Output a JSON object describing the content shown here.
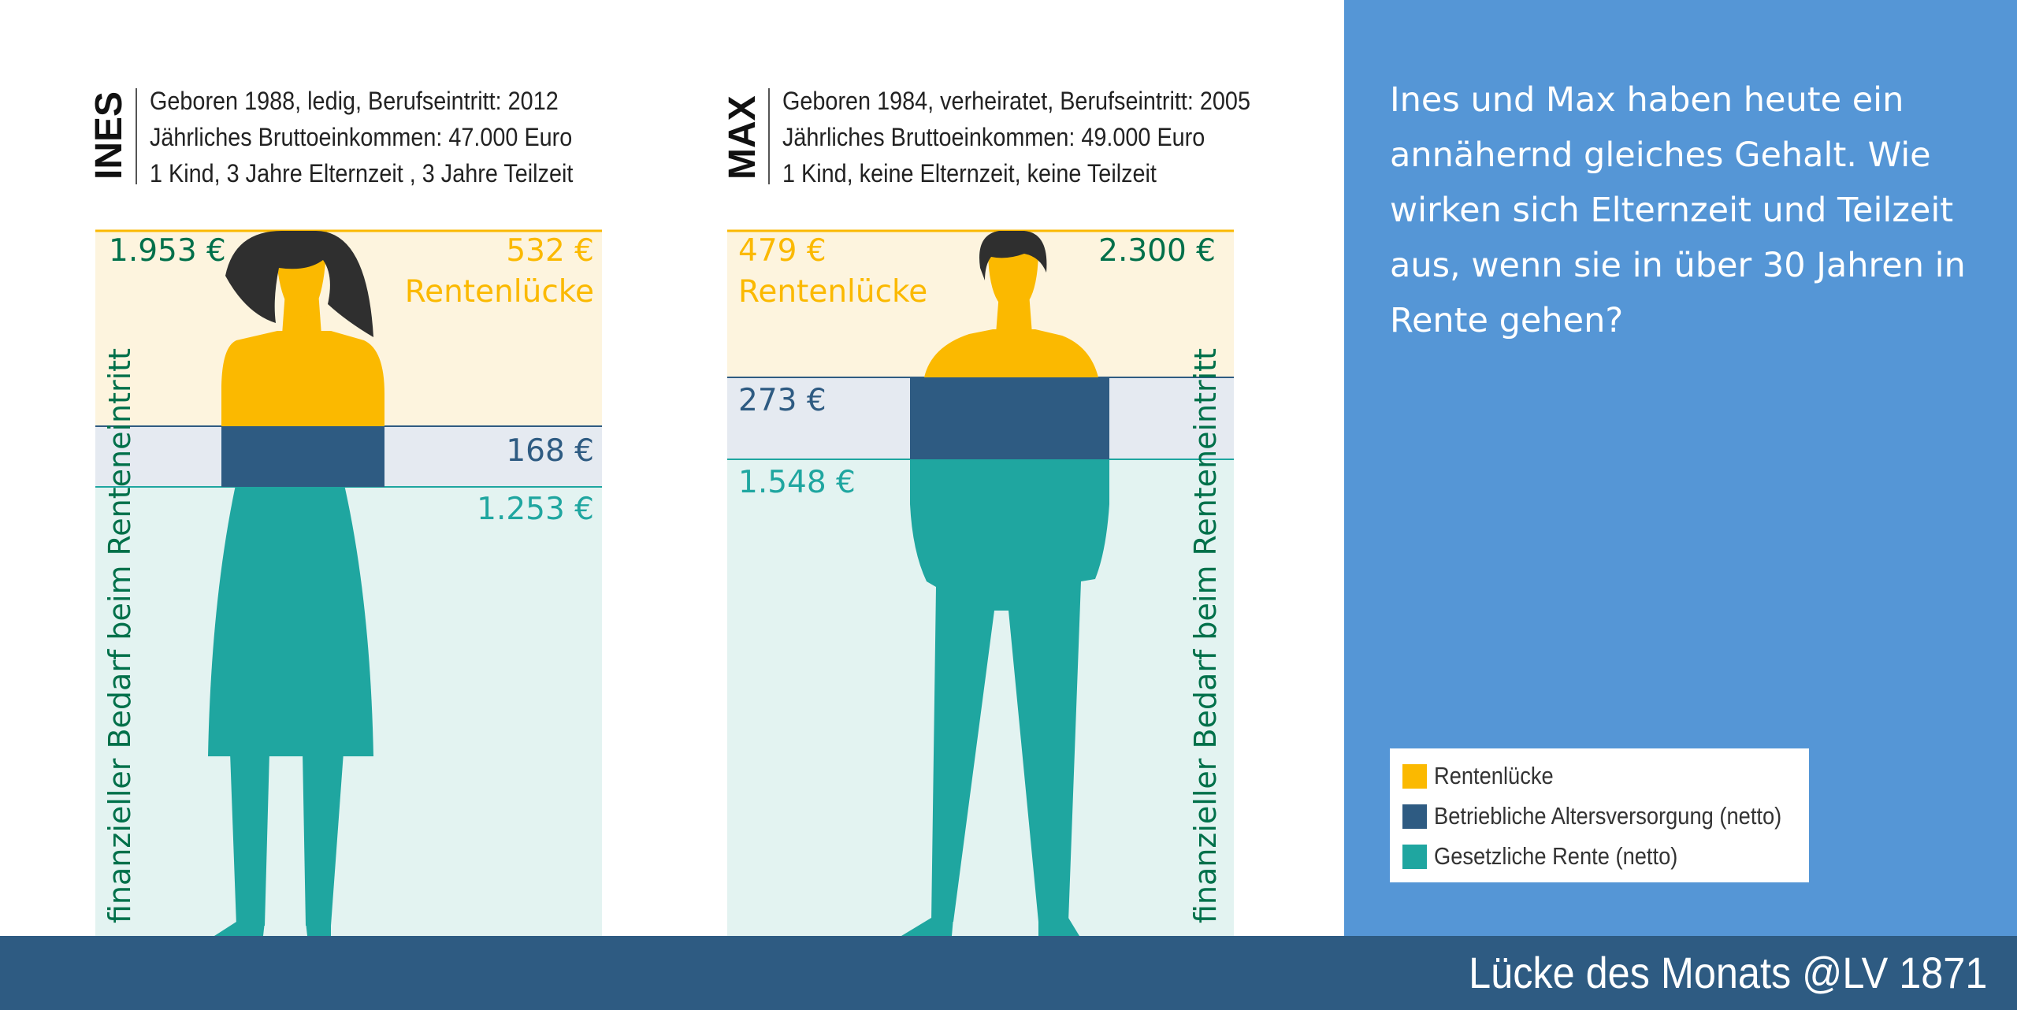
{
  "chart_data": {
    "type": "bar",
    "title": "",
    "legend_position": "bottom-right",
    "people": [
      {
        "name": "INES",
        "info": [
          "Geboren 1988, ledig, Berufseintritt: 2012",
          "Jährliches Bruttoeinkommen: 47.000 Euro",
          "1 Kind, 3 Jahre Elternzeit , 3 Jahre Teilzeit"
        ],
        "total_need": 1953,
        "total_label": "1.953 €",
        "segments": [
          {
            "series": "Rentenlücke",
            "value": 532,
            "label": "532 €",
            "sublabel": "Rentenlücke"
          },
          {
            "series": "Betriebliche Altersversorgung (netto)",
            "value": 168,
            "label": "168 €"
          },
          {
            "series": "Gesetzliche Rente (netto)",
            "value": 1253,
            "label": "1.253 €"
          }
        ]
      },
      {
        "name": "MAX",
        "info": [
          "Geboren 1984, verheiratet, Berufseintritt: 2005",
          "Jährliches Bruttoeinkommen: 49.000 Euro",
          "1 Kind, keine Elternzeit, keine Teilzeit"
        ],
        "total_need": 2300,
        "total_label": "2.300 €",
        "segments": [
          {
            "series": "Rentenlücke",
            "value": 479,
            "label": "479 €",
            "sublabel": "Rentenlücke"
          },
          {
            "series": "Betriebliche Altersversorgung (netto)",
            "value": 273,
            "label": "273 €"
          },
          {
            "series": "Gesetzliche Rente (netto)",
            "value": 1548,
            "label": "1.548 €"
          }
        ]
      }
    ],
    "vertical_label": "finanzieller Bedarf beim Renteneintritt",
    "legend": [
      {
        "label": "Rentenlücke",
        "color": "#fbb900"
      },
      {
        "label": "Betriebliche Altersversorgung (netto)",
        "color": "#2e5b82"
      },
      {
        "label": "Gesetzliche Rente (netto)",
        "color": "#1fa6a0"
      }
    ]
  },
  "colors": {
    "gap": "#fbb900",
    "gap_bg": "#fdf4de",
    "company": "#2e5b82",
    "company_bg": "#e5eaf1",
    "state": "#1fa6a0",
    "state_bg": "#e3f3f1",
    "green_text": "#00704a",
    "hair": "#2f2f2f",
    "panel": "#5596d6",
    "footer": "#2e5b82"
  },
  "question": "Ines und Max haben heute ein annähernd gleiches Gehalt. Wie wirken sich Elternzeit und Teilzeit aus, wenn sie in über 30 Jahren in Rente gehen?",
  "footer": "Lücke des Monats @LV 1871"
}
